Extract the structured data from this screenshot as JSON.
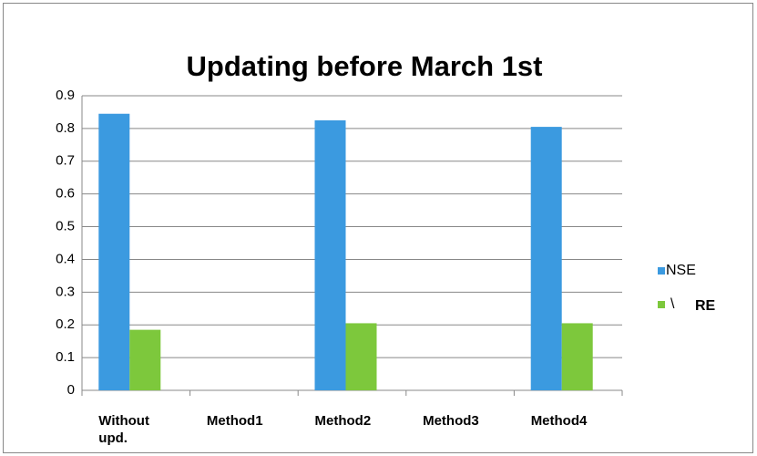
{
  "chart_data": {
    "type": "bar",
    "title": "Updating before March 1st",
    "categories": [
      "Without upd.",
      "Method1",
      "Method2",
      "Method3",
      "Method4"
    ],
    "series": [
      {
        "name": "NSE",
        "color": "#3b9ae0",
        "values": [
          0.845,
          null,
          0.825,
          null,
          0.805
        ]
      },
      {
        "name": "\\",
        "color": "#7dc83c",
        "values": [
          0.185,
          null,
          0.205,
          null,
          0.205
        ]
      }
    ],
    "annotations": [
      {
        "text": "RE"
      }
    ],
    "ylim": [
      0,
      0.9
    ],
    "yticks": [
      0,
      0.1,
      0.2,
      0.3,
      0.4,
      0.5,
      0.6,
      0.7,
      0.8,
      0.9
    ],
    "grid": true,
    "legend": "right"
  }
}
